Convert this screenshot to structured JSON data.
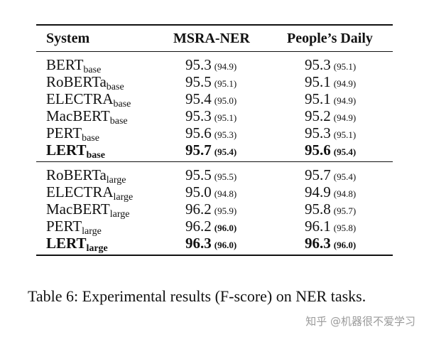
{
  "table": {
    "headers": {
      "system": "System",
      "msra": "MSRA-NER",
      "pd": "People’s Daily"
    },
    "groups": [
      {
        "rows": [
          {
            "name": "BERT",
            "sub": "base",
            "msra": "95.3",
            "msra_avg": "(94.9)",
            "pd": "95.3",
            "pd_avg": "(95.1)",
            "bold": false
          },
          {
            "name": "RoBERTa",
            "sub": "base",
            "msra": "95.5",
            "msra_avg": "(95.1)",
            "pd": "95.1",
            "pd_avg": "(94.9)",
            "bold": false
          },
          {
            "name": "ELECTRA",
            "sub": "base",
            "msra": "95.4",
            "msra_avg": "(95.0)",
            "pd": "95.1",
            "pd_avg": "(94.9)",
            "bold": false
          },
          {
            "name": "MacBERT",
            "sub": "base",
            "msra": "95.3",
            "msra_avg": "(95.1)",
            "pd": "95.2",
            "pd_avg": "(94.9)",
            "bold": false
          },
          {
            "name": "PERT",
            "sub": "base",
            "msra": "95.6",
            "msra_avg": "(95.3)",
            "pd": "95.3",
            "pd_avg": "(95.1)",
            "bold": false
          },
          {
            "name": "LERT",
            "sub": "base",
            "msra": "95.7",
            "msra_avg": "(95.4)",
            "pd": "95.6",
            "pd_avg": "(95.4)",
            "bold": true
          }
        ]
      },
      {
        "rows": [
          {
            "name": "RoBERTa",
            "sub": "large",
            "msra": "95.5",
            "msra_avg": "(95.5)",
            "pd": "95.7",
            "pd_avg": "(95.4)",
            "bold": false
          },
          {
            "name": "ELECTRA",
            "sub": "large",
            "msra": "95.0",
            "msra_avg": "(94.8)",
            "pd": "94.9",
            "pd_avg": "(94.8)",
            "bold": false
          },
          {
            "name": "MacBERT",
            "sub": "large",
            "msra": "96.2",
            "msra_avg": "(95.9)",
            "pd": "95.8",
            "pd_avg": "(95.7)",
            "bold": false
          },
          {
            "name": "PERT",
            "sub": "large",
            "msra": "96.2",
            "msra_avg": "(96.0)",
            "msra_avg_bold": true,
            "pd": "96.1",
            "pd_avg": "(95.8)",
            "bold": false
          },
          {
            "name": "LERT",
            "sub": "large",
            "msra": "96.3",
            "msra_avg": "(96.0)",
            "pd": "96.3",
            "pd_avg": "(96.0)",
            "bold": true
          }
        ]
      }
    ]
  },
  "caption": "Table 6:  Experimental results (F-score) on NER tasks.",
  "watermark": "知乎 @机器很不爱学习"
}
